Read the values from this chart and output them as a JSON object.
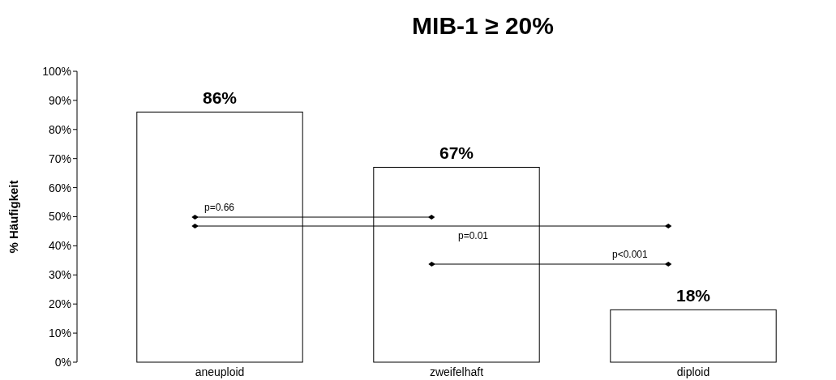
{
  "chart_data": {
    "type": "bar",
    "title": "MIB-1 ≥ 20%",
    "ylabel": "% Häufigkeit",
    "categories": [
      "aneuploid",
      "zweifelhaft",
      "diploid"
    ],
    "values": [
      86,
      67,
      18
    ],
    "color": "#ffffff",
    "value_labels": [
      "86%",
      "67%",
      "18%"
    ],
    "ylim": [
      0,
      100
    ],
    "yticks": [
      {
        "value": 0,
        "label": "0%"
      },
      {
        "value": 10,
        "label": "10%"
      },
      {
        "value": 20,
        "label": "20%"
      },
      {
        "value": 30,
        "label": "30%"
      },
      {
        "value": 40,
        "label": "40%"
      },
      {
        "value": 50,
        "label": "50%"
      },
      {
        "value": 60,
        "label": "60%"
      },
      {
        "value": 70,
        "label": "70%"
      },
      {
        "value": 80,
        "label": "80%"
      },
      {
        "value": 90,
        "label": "90%"
      },
      {
        "value": 100,
        "label": "100%"
      }
    ],
    "annotations": [
      "p=0.66",
      "p=0.01",
      "p<0.001"
    ]
  }
}
